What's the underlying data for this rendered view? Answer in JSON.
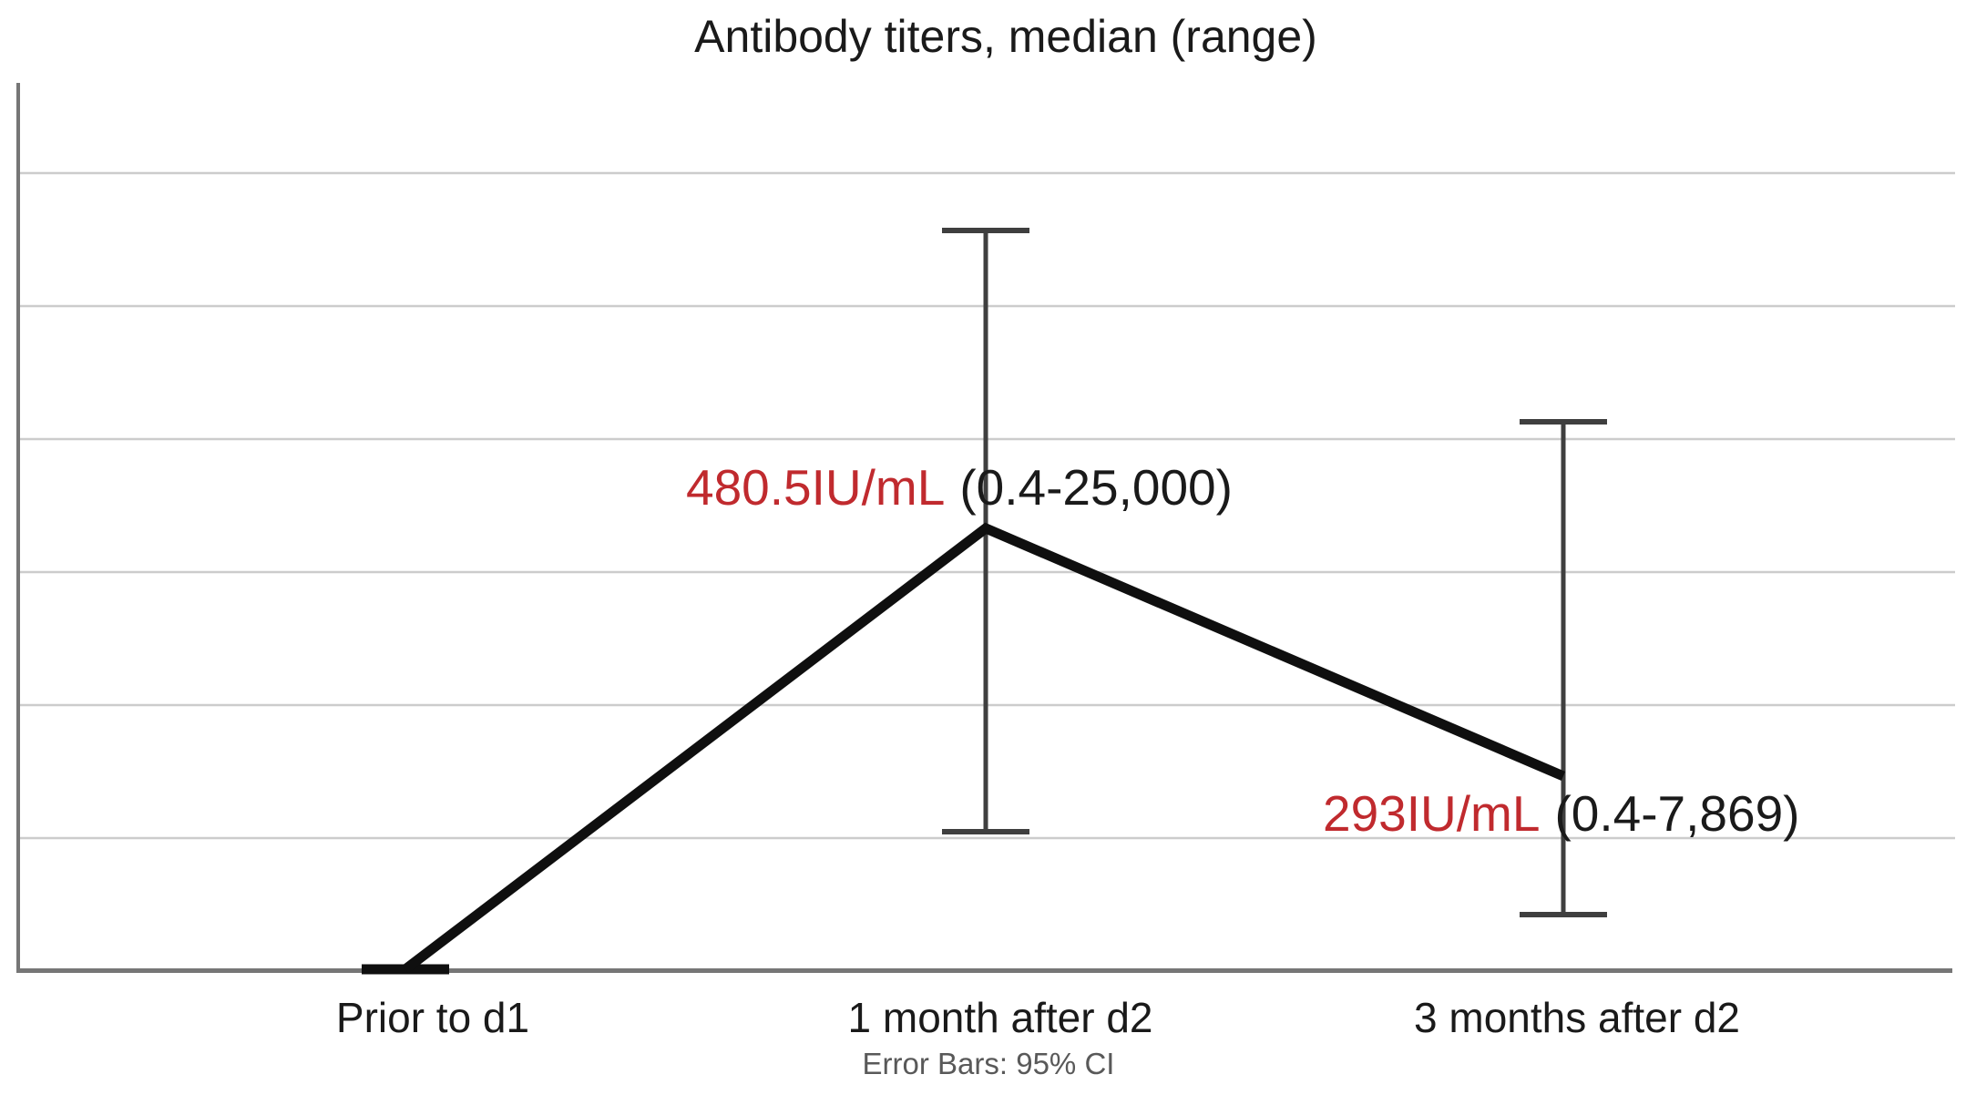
{
  "chart_data": {
    "type": "line",
    "title": "Antibody titers, median (range)",
    "categories": [
      "Prior to d1",
      "1 month after d2",
      "3 months after d2"
    ],
    "series": [
      {
        "name": "Antibody titer median (IU/mL)",
        "values": [
          0.4,
          480.5,
          293
        ]
      }
    ],
    "point_labels": [
      null,
      "480.5IU/mL (0.4-25,000)",
      "293IU/mL (0.4-7,869)"
    ],
    "ranges": [
      null,
      [
        0.4,
        25000
      ],
      [
        0.4,
        7869
      ]
    ],
    "error_bars_note": "Error Bars: 95% CI",
    "ylabel": "",
    "xlabel": "",
    "y_axis": {
      "tick_labels_visible": false,
      "gridline_count": 6
    },
    "grid": "horizontal",
    "legend": "none"
  },
  "x_labels": [
    "Prior to d1",
    "1 month after d2",
    "3 months after d2"
  ],
  "annotations": [
    {
      "value_text": "480.5IU/mL",
      "range_text": "(0.4-25,000)"
    },
    {
      "value_text": "293IU/mL",
      "range_text": "(0.4-7,869)"
    }
  ],
  "footnote": "Error Bars: 95% CI",
  "colors": {
    "annotation_red": "#c02a2e",
    "data_line": "#0f0f0f",
    "error_bar": "#3f3f3f",
    "gridline": "#cccccc",
    "axis": "#767676",
    "footnote_gray": "#595959",
    "text": "#1a1a1a",
    "background": "#ffffff"
  }
}
